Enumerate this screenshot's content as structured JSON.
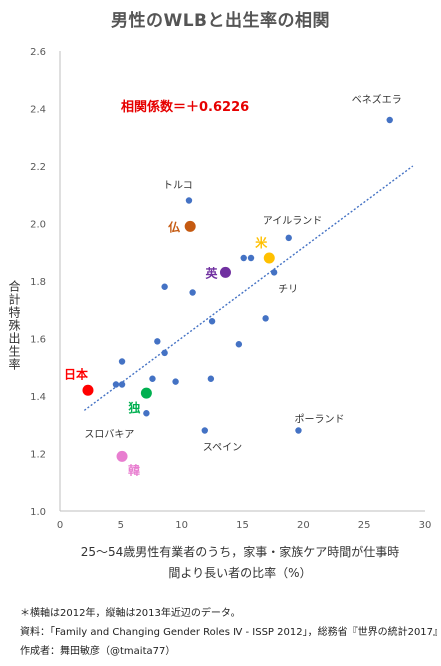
{
  "title": "男性のWLBと出生率の相関",
  "chart_data": {
    "type": "scatter",
    "title": "男性のWLBと出生率の相関",
    "xlabel": "25～54歳男性有業者のうち，家事・家族ケア時間が仕事時間より長い者の比率（%）",
    "xlabel_lines": [
      "25～54歳男性有業者のうち，家事・家族ケア時間が仕事時",
      "間より長い者の比率（%）"
    ],
    "ylabel": "合計特殊出生率",
    "xlim": [
      0,
      30
    ],
    "ylim": [
      1.0,
      2.6
    ],
    "xticks": [
      0,
      5,
      10,
      15,
      20,
      25,
      30
    ],
    "yticks": [
      1.0,
      1.2,
      1.4,
      1.6,
      1.8,
      2.0,
      2.2,
      2.4,
      2.6
    ],
    "grid": false,
    "correlation_label": "相関係数＝＋0.6226",
    "trendline": {
      "x": [
        2,
        29
      ],
      "y": [
        1.35,
        2.2
      ],
      "style": "dotted",
      "color": "#4472c4"
    },
    "points": [
      {
        "x": 27.1,
        "y": 2.36,
        "label": "ベネズエラ"
      },
      {
        "x": 10.6,
        "y": 2.08,
        "label": "トルコ"
      },
      {
        "x": 18.8,
        "y": 1.95,
        "label": "アイルランド"
      },
      {
        "x": 15.1,
        "y": 1.88
      },
      {
        "x": 15.7,
        "y": 1.88
      },
      {
        "x": 17.6,
        "y": 1.83,
        "label": "チリ"
      },
      {
        "x": 8.6,
        "y": 1.78
      },
      {
        "x": 10.9,
        "y": 1.76
      },
      {
        "x": 12.5,
        "y": 1.66
      },
      {
        "x": 16.9,
        "y": 1.67
      },
      {
        "x": 8.0,
        "y": 1.59
      },
      {
        "x": 8.6,
        "y": 1.55
      },
      {
        "x": 14.7,
        "y": 1.58
      },
      {
        "x": 5.1,
        "y": 1.52
      },
      {
        "x": 4.6,
        "y": 1.44
      },
      {
        "x": 5.1,
        "y": 1.44
      },
      {
        "x": 7.6,
        "y": 1.46
      },
      {
        "x": 9.5,
        "y": 1.45
      },
      {
        "x": 12.4,
        "y": 1.46
      },
      {
        "x": 7.1,
        "y": 1.34,
        "label": "スロバキア"
      },
      {
        "x": 11.9,
        "y": 1.28,
        "label": "スペイン"
      },
      {
        "x": 19.6,
        "y": 1.28,
        "label": "ポーランド"
      }
    ],
    "highlighted": [
      {
        "x": 10.7,
        "y": 1.99,
        "label": "仏",
        "color": "#c55a11"
      },
      {
        "x": 17.2,
        "y": 1.88,
        "label": "米",
        "color": "#ffc000"
      },
      {
        "x": 13.6,
        "y": 1.83,
        "label": "英",
        "color": "#7030a0"
      },
      {
        "x": 2.3,
        "y": 1.42,
        "label": "日本",
        "color": "#ff0000"
      },
      {
        "x": 7.1,
        "y": 1.41,
        "label": "独",
        "color": "#00b050"
      },
      {
        "x": 5.1,
        "y": 1.19,
        "label": "韓",
        "color": "#e87ed0"
      }
    ],
    "point_color": "#4472c4"
  },
  "footnotes": [
    "＊横軸は2012年，縦軸は2013年近辺のデータ。",
    "資料：「Family and Changing Gender Roles Ⅳ - ISSP 2012」，総務省『世界の統計2017』",
    "作成者：舞田敏彦（@tmaita77）"
  ]
}
